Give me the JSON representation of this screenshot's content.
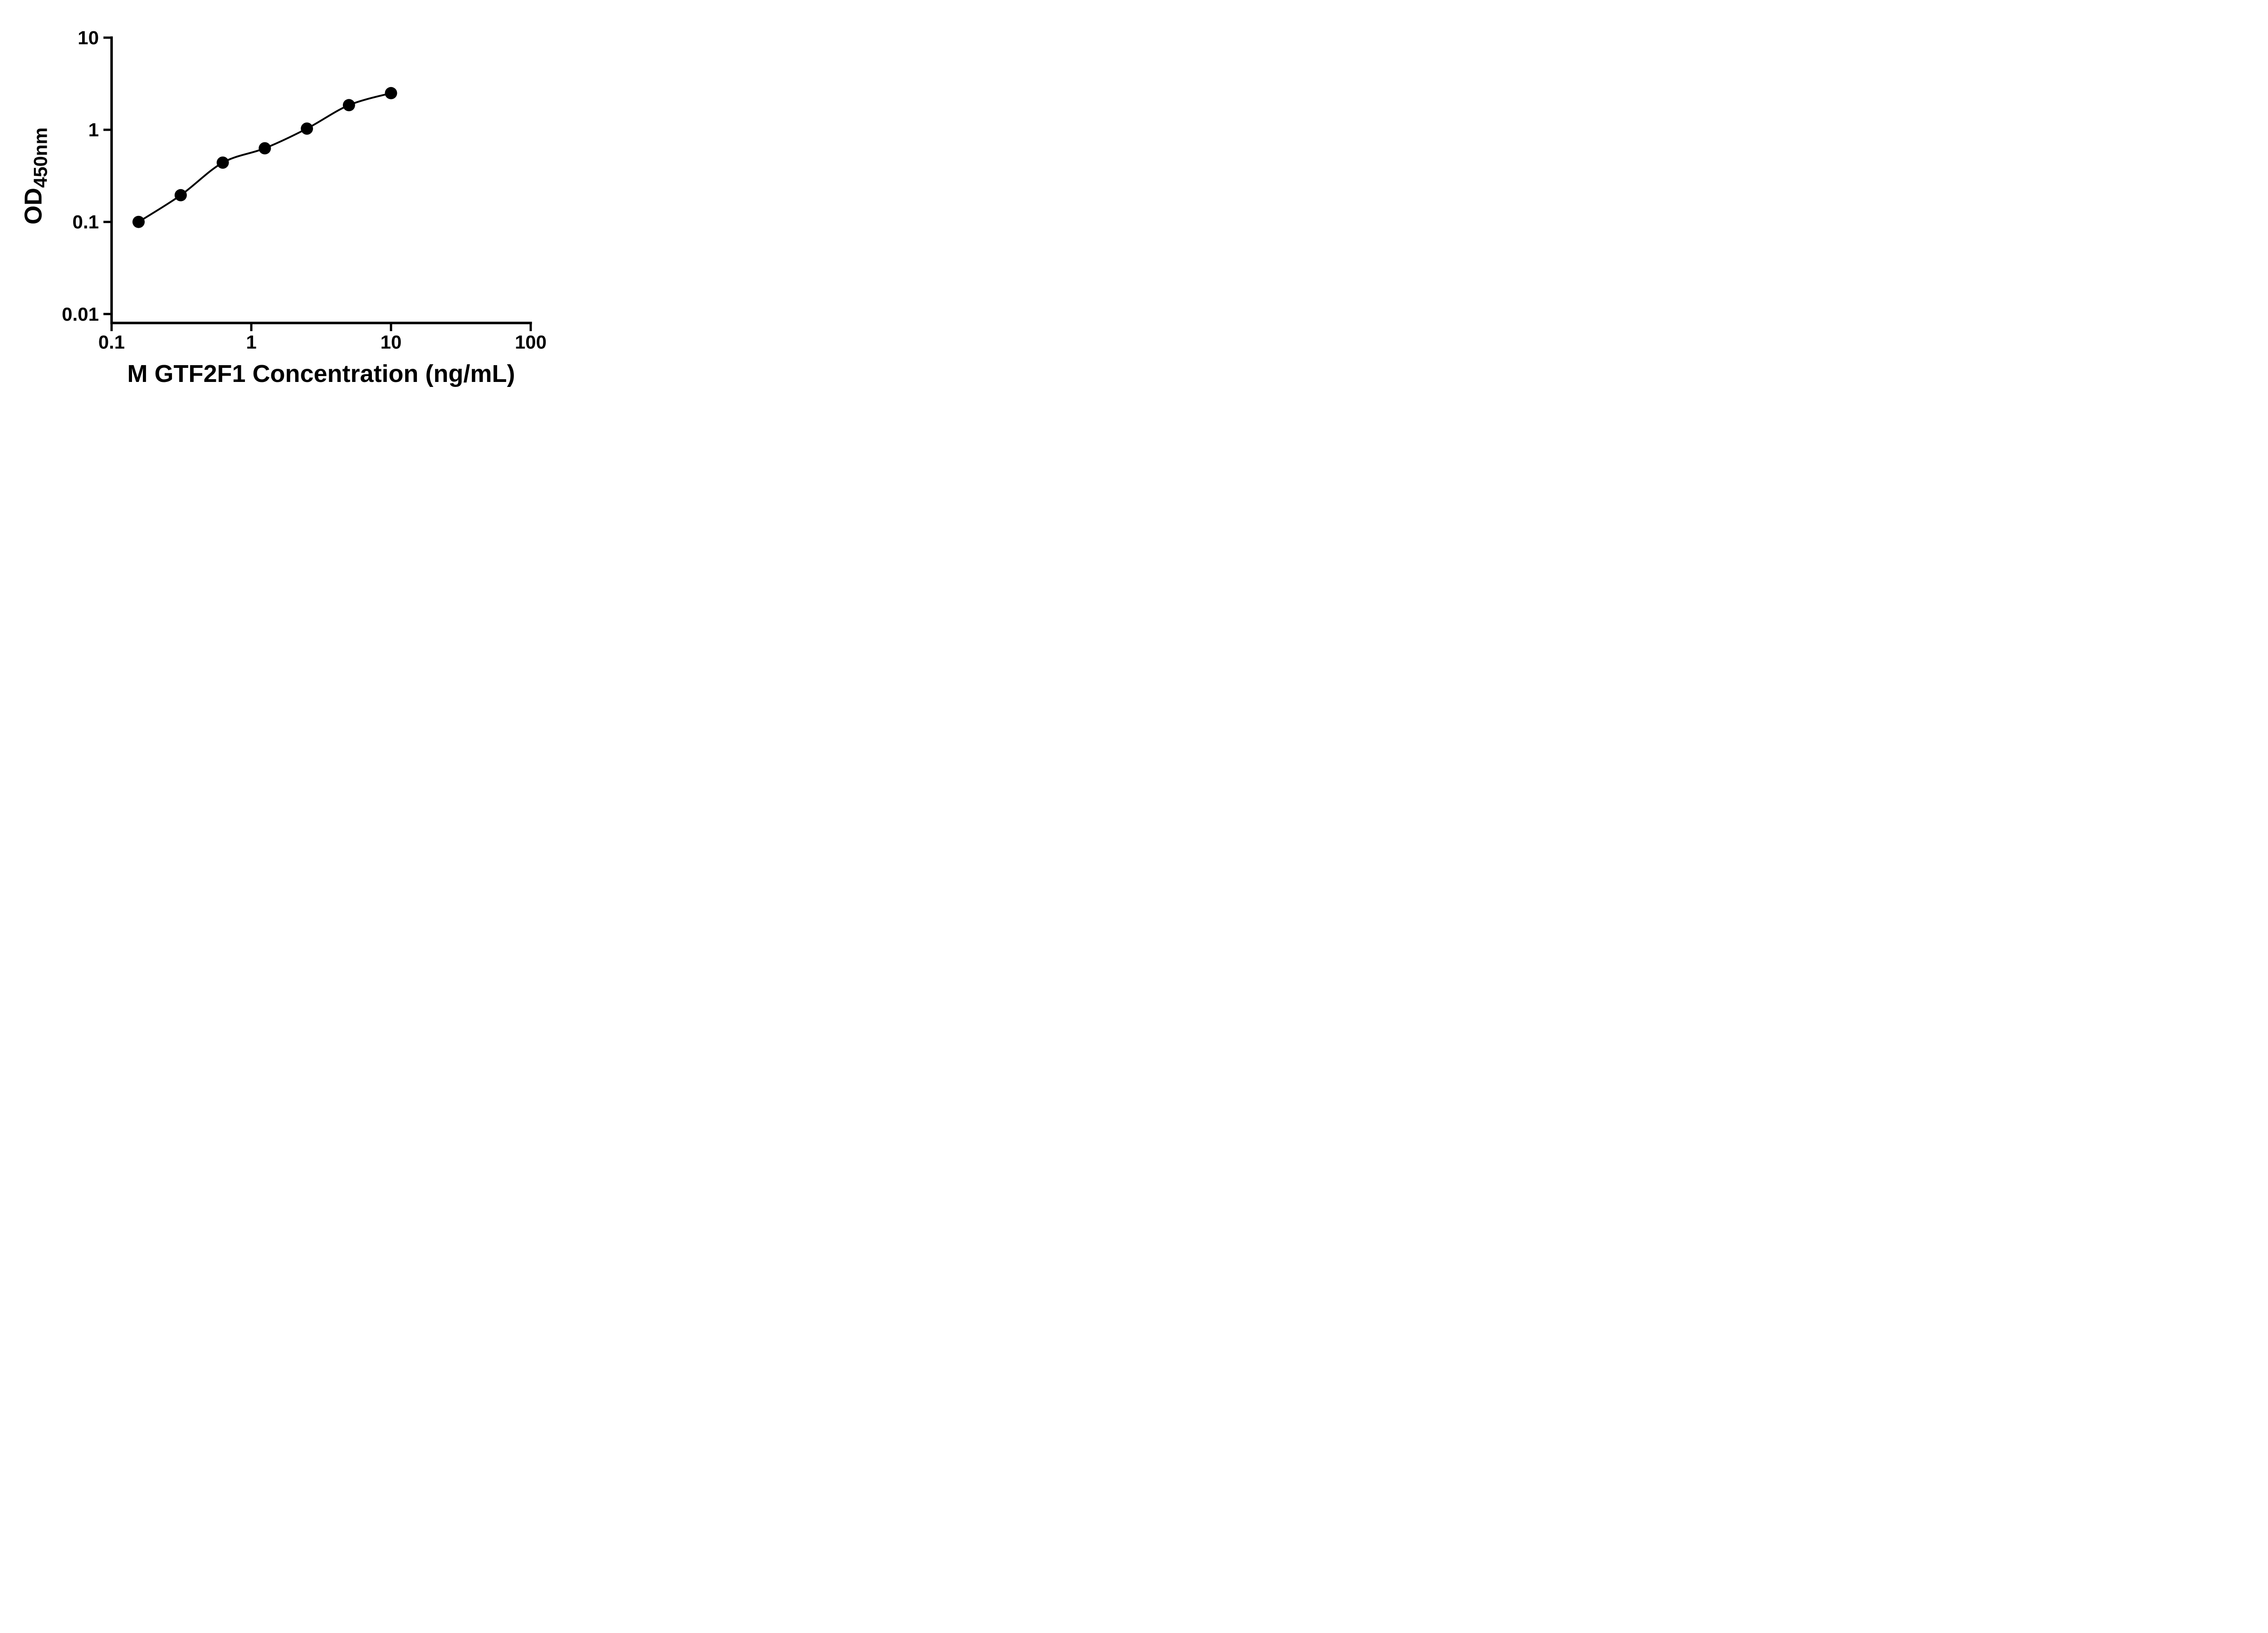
{
  "figure": {
    "background_color": "#ffffff",
    "accent_color": "#000000"
  },
  "chart_data": {
    "type": "scatter",
    "title": "",
    "xlabel": "M GTF2F1 Concentration (ng/mL)",
    "ylabel_main": "OD",
    "ylabel_sub": "450nm",
    "x_scale": "log",
    "y_scale": "log",
    "x_axis_range": [
      0.1,
      100
    ],
    "y_axis_range": [
      0.008,
      10
    ],
    "grid": false,
    "legend": false,
    "x_ticks": [
      {
        "value": 0.1,
        "label": "0.1"
      },
      {
        "value": 1,
        "label": "1"
      },
      {
        "value": 10,
        "label": "10"
      },
      {
        "value": 100,
        "label": "100"
      }
    ],
    "y_ticks": [
      {
        "value": 0.01,
        "label": "0.01"
      },
      {
        "value": 0.1,
        "label": "0.1"
      },
      {
        "value": 1,
        "label": "1"
      },
      {
        "value": 10,
        "label": "10"
      }
    ],
    "series": [
      {
        "marker": "filled-circle",
        "marker_color": "#000000",
        "line_style": "smooth-curve",
        "line_color": "#000000",
        "x": [
          0.156,
          0.3125,
          0.625,
          1.25,
          2.5,
          5,
          10
        ],
        "y": [
          0.1,
          0.195,
          0.44,
          0.63,
          1.03,
          1.85,
          2.5
        ]
      }
    ]
  }
}
